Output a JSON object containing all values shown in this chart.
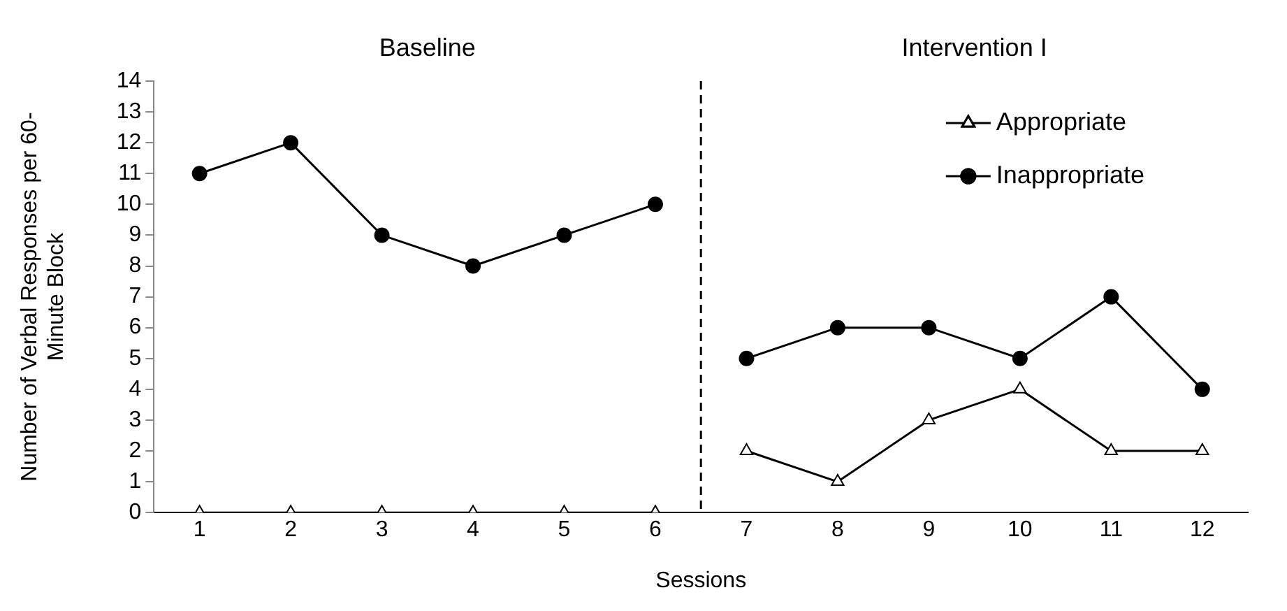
{
  "chart_data": {
    "type": "line",
    "xlabel": "Sessions",
    "ylabel": "Number of Verbal Responses per 60-Minute Block",
    "x": [
      1,
      2,
      3,
      4,
      5,
      6,
      7,
      8,
      9,
      10,
      11,
      12
    ],
    "xlim": [
      0.5,
      12.5
    ],
    "xticks": [
      1,
      2,
      3,
      4,
      5,
      6,
      7,
      8,
      9,
      10,
      11,
      12
    ],
    "ylim": [
      0,
      14
    ],
    "yticks": [
      0,
      1,
      2,
      3,
      4,
      5,
      6,
      7,
      8,
      9,
      10,
      11,
      12,
      13,
      14
    ],
    "series": [
      {
        "name": "Appropriate",
        "color": "#000000",
        "marker": "triangle",
        "values": [
          0,
          0,
          0,
          0,
          0,
          0,
          2,
          1,
          3,
          4,
          2,
          2
        ]
      },
      {
        "name": "Inappropriate",
        "color": "#000000",
        "marker": "circle",
        "values": [
          11,
          12,
          9,
          8,
          9,
          10,
          5,
          6,
          6,
          5,
          7,
          4
        ]
      }
    ],
    "ref_lines": [
      {
        "axis": "x",
        "value": 6.5,
        "line_style": "dashed",
        "color": "#000000"
      }
    ],
    "annotations": [
      "Baseline",
      "Intervention I"
    ],
    "grid": false,
    "legend": "top right",
    "line_style": "solid"
  }
}
